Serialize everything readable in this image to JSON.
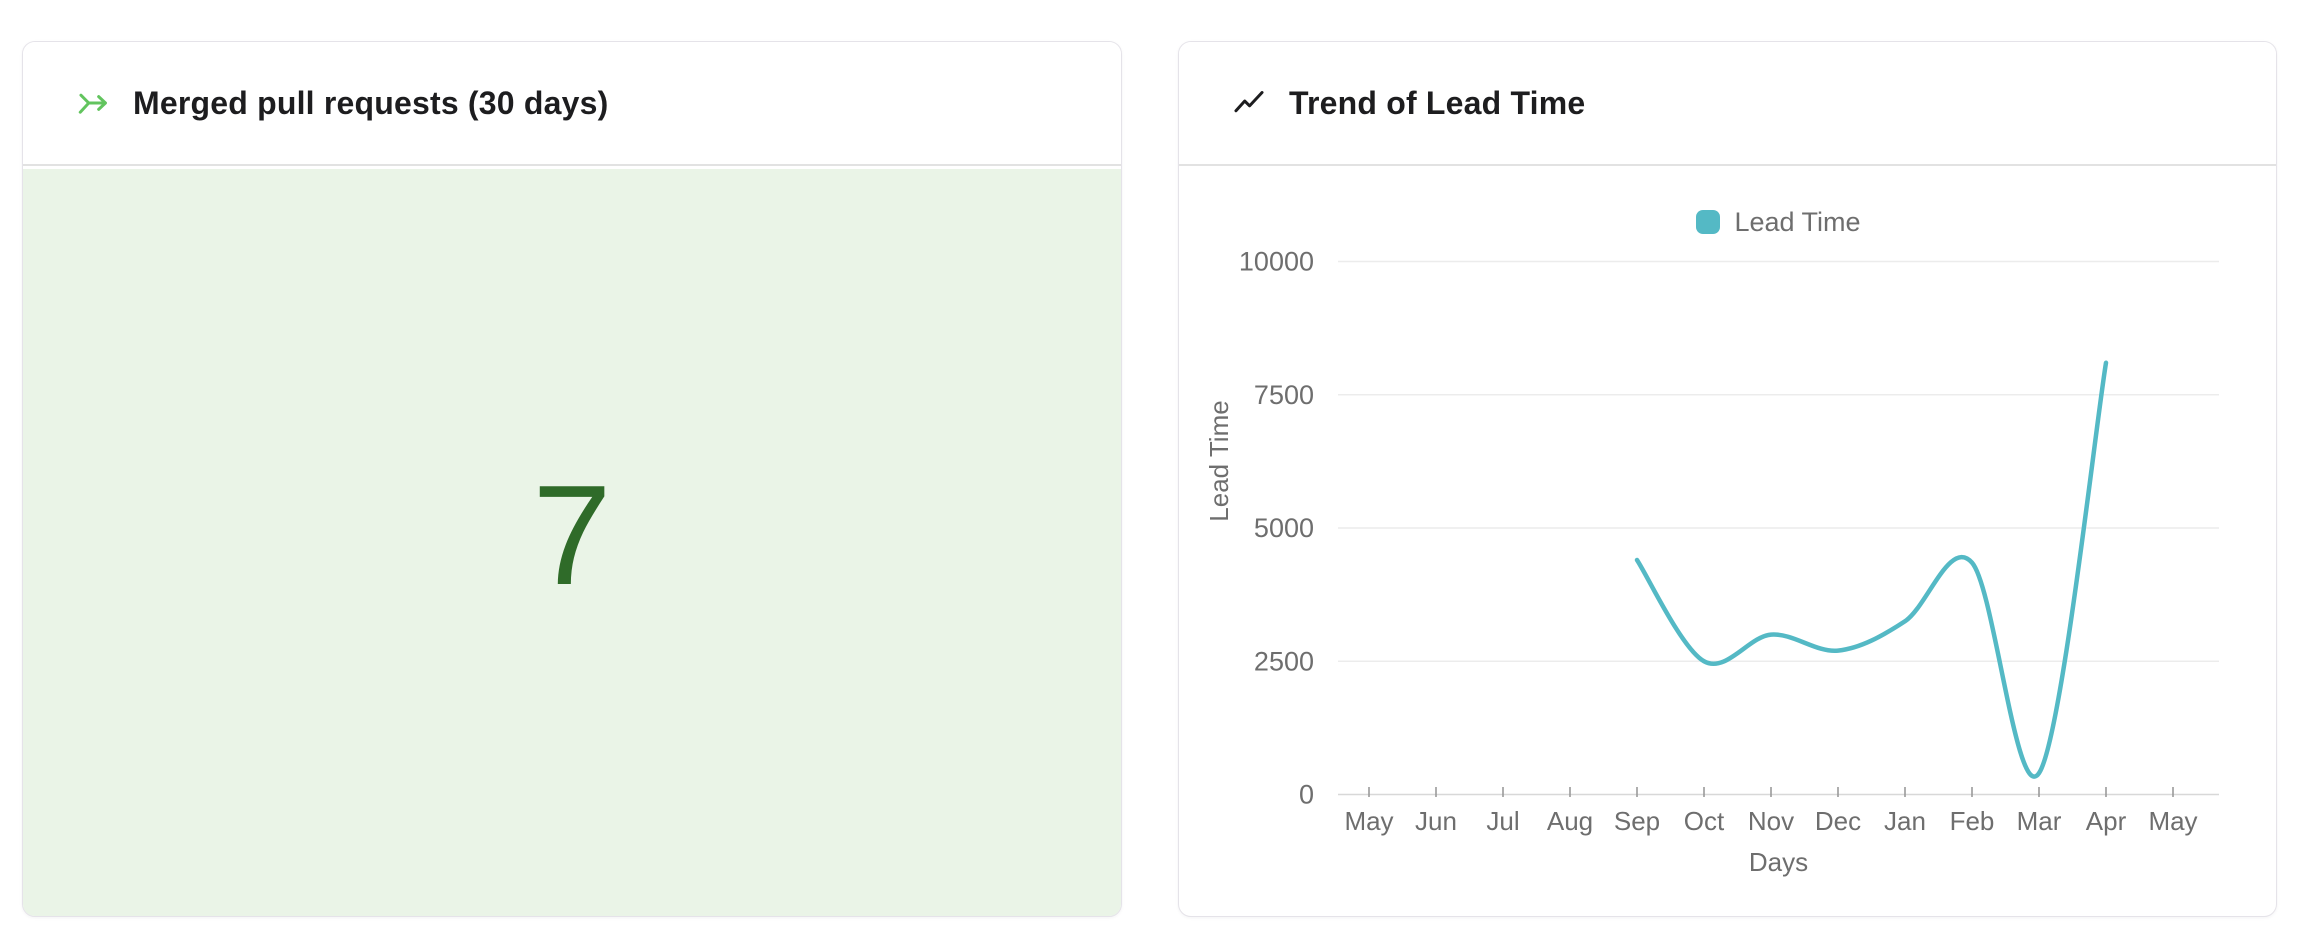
{
  "left_card": {
    "title": "Merged pull requests (30 days)",
    "icon": "merge-arrow-icon",
    "value": "7",
    "value_color": "#2f6b29",
    "accent_color": "#62c45e",
    "panel_bg": "#eaf4e7"
  },
  "right_card": {
    "title": "Trend of Lead Time",
    "icon": "trend-up-icon",
    "legend": {
      "label": "Lead Time",
      "color": "#54b9c5"
    }
  },
  "chart_data": {
    "type": "line",
    "curve": "spline",
    "title": "Trend of Lead Time",
    "xlabel": "Days",
    "ylabel": "Lead Time",
    "categories": [
      "May",
      "Jun",
      "Jul",
      "Aug",
      "Sep",
      "Oct",
      "Nov",
      "Dec",
      "Jan",
      "Feb",
      "Mar",
      "Apr",
      "May"
    ],
    "series": [
      {
        "name": "Lead Time",
        "color": "#54b9c5",
        "values": [
          null,
          null,
          null,
          null,
          4400,
          2500,
          3000,
          2700,
          3250,
          4350,
          400,
          8100,
          null
        ]
      }
    ],
    "ylim": [
      0,
      10000
    ],
    "yticks": [
      0,
      2500,
      5000,
      7500,
      10000
    ],
    "grid": "horizontal",
    "legend_position": "top-center",
    "text_color": "#6e6e6e"
  }
}
